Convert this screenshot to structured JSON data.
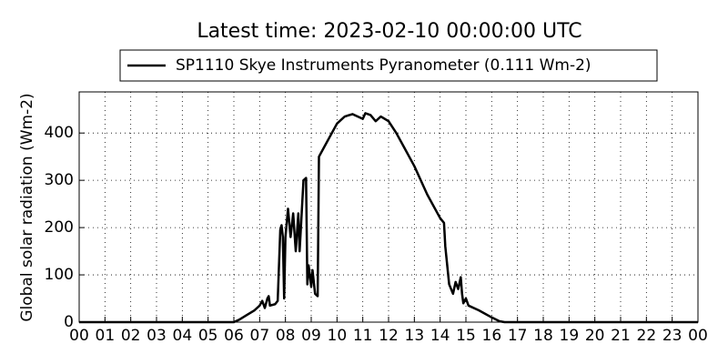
{
  "chart_data": {
    "type": "line",
    "title": "Latest time: 2023-02-10 00:00:00 UTC",
    "y_label": "Global solar radiation (Wm-2)",
    "x": [
      0,
      6,
      6.2,
      6.5,
      6.8,
      7.0,
      7.1,
      7.2,
      7.3,
      7.35,
      7.4,
      7.6,
      7.7,
      7.8,
      7.85,
      7.9,
      7.95,
      8.0,
      8.1,
      8.2,
      8.3,
      8.4,
      8.5,
      8.55,
      8.7,
      8.8,
      8.85,
      8.9,
      9.0,
      9.05,
      9.15,
      9.25,
      9.3,
      9.5,
      9.8,
      10.0,
      10.3,
      10.6,
      10.8,
      11.0,
      11.1,
      11.3,
      11.5,
      11.7,
      12.0,
      12.3,
      12.6,
      13.0,
      13.5,
      14.0,
      14.15,
      14.2,
      14.35,
      14.5,
      14.6,
      14.7,
      14.8,
      14.85,
      14.9,
      15.0,
      15.1,
      15.5,
      16.0,
      16.3,
      16.5,
      24
    ],
    "series": [
      {
        "name": "SP1110 Skye Instruments Pyranometer (0.111 Wm-2)",
        "color": "#000000",
        "values": [
          0,
          0,
          5,
          15,
          25,
          35,
          45,
          30,
          50,
          55,
          35,
          38,
          45,
          195,
          205,
          180,
          50,
          180,
          240,
          180,
          230,
          150,
          230,
          150,
          300,
          305,
          80,
          120,
          75,
          110,
          60,
          55,
          350,
          370,
          400,
          420,
          435,
          440,
          435,
          430,
          442,
          438,
          425,
          435,
          425,
          400,
          370,
          330,
          270,
          220,
          210,
          160,
          80,
          60,
          85,
          70,
          95,
          60,
          40,
          50,
          35,
          25,
          10,
          2,
          0,
          0
        ]
      }
    ],
    "xlim": [
      0,
      24
    ],
    "xticks": [
      {
        "value": 0,
        "label": "00"
      },
      {
        "value": 1,
        "label": "01"
      },
      {
        "value": 2,
        "label": "02"
      },
      {
        "value": 3,
        "label": "03"
      },
      {
        "value": 4,
        "label": "04"
      },
      {
        "value": 5,
        "label": "05"
      },
      {
        "value": 6,
        "label": "06"
      },
      {
        "value": 7,
        "label": "07"
      },
      {
        "value": 8,
        "label": "08"
      },
      {
        "value": 9,
        "label": "09"
      },
      {
        "value": 10,
        "label": "10"
      },
      {
        "value": 11,
        "label": "11"
      },
      {
        "value": 12,
        "label": "12"
      },
      {
        "value": 13,
        "label": "13"
      },
      {
        "value": 14,
        "label": "14"
      },
      {
        "value": 15,
        "label": "15"
      },
      {
        "value": 16,
        "label": "16"
      },
      {
        "value": 17,
        "label": "17"
      },
      {
        "value": 18,
        "label": "18"
      },
      {
        "value": 19,
        "label": "19"
      },
      {
        "value": 20,
        "label": "20"
      },
      {
        "value": 21,
        "label": "21"
      },
      {
        "value": 22,
        "label": "22"
      },
      {
        "value": 23,
        "label": "23"
      },
      {
        "value": 24,
        "label": "00"
      }
    ],
    "ylim": [
      0,
      487
    ],
    "yticks": [
      0,
      100,
      200,
      300,
      400
    ],
    "grid": true
  }
}
